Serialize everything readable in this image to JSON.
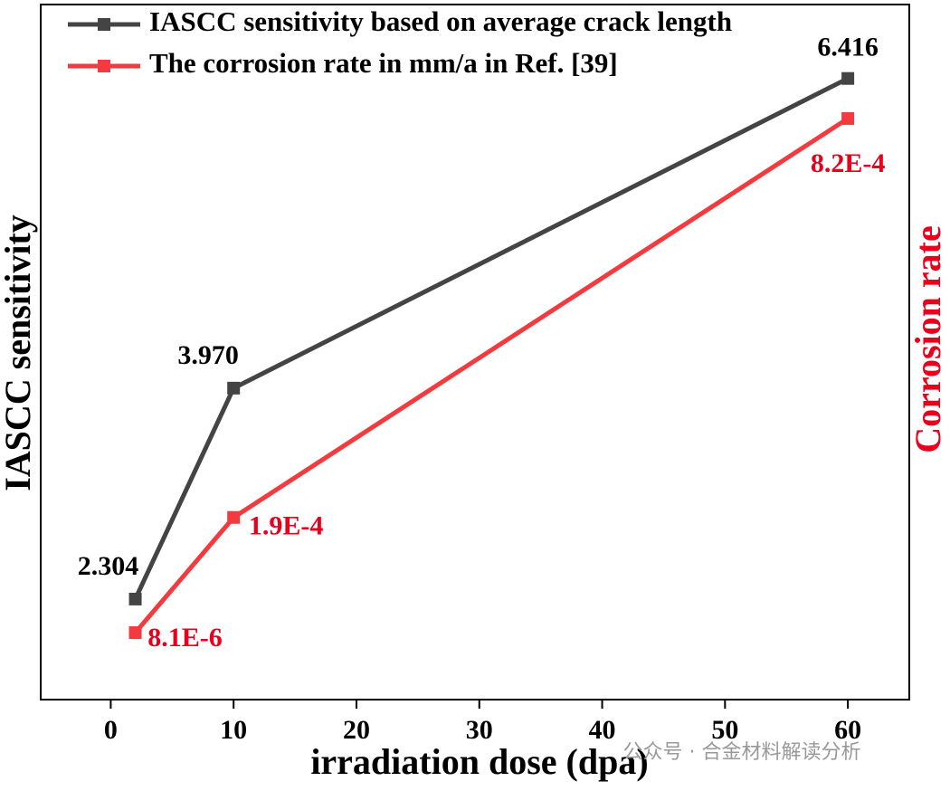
{
  "chart_data": {
    "type": "line",
    "x_label": "irradiation dose (dpa)",
    "y_label": "IASCC sensitivity",
    "y2_label": "Corrosion rate",
    "x": [
      2,
      10,
      60
    ],
    "xlim": [
      -5.7,
      65
    ],
    "xticks": [
      0,
      10,
      20,
      30,
      40,
      50,
      60
    ],
    "ylim": [
      1.51,
      7.0
    ],
    "y2lim": [
      -9.76e-05,
      0.001
    ],
    "legend": "upper left",
    "series": [
      {
        "name": "IASCC sensitivity based on average crack length",
        "color": "#444444",
        "values": [
          2.304,
          3.97,
          6.416
        ],
        "value_labels": [
          "2.304",
          "3.970",
          "6.416"
        ]
      },
      {
        "name": "The corrosion rate in mm/a in Ref. [39]",
        "color": "#f23a3f",
        "axis": "y2",
        "values": [
          8.1e-06,
          0.00019,
          0.00082
        ],
        "value_labels": [
          "8.1E-6",
          "1.9E-4",
          "8.2E-4"
        ]
      }
    ],
    "watermark": "公众号 · 合金材料解读分析"
  }
}
